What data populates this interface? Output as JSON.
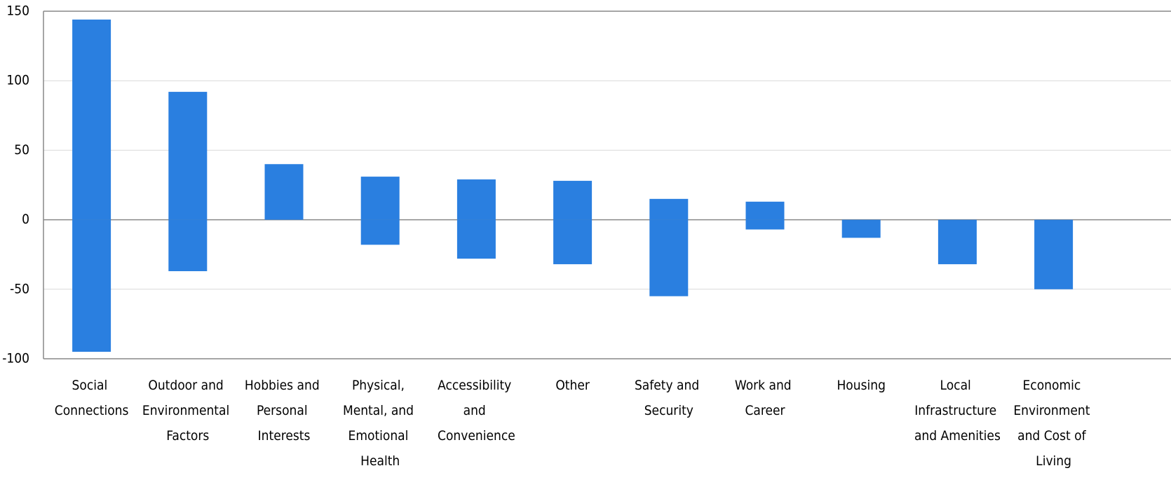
{
  "chart_data": {
    "type": "bar",
    "categories": [
      "Social Connections",
      "Outdoor and Environmental Factors",
      "Hobbies and Personal Interests",
      "Physical, Mental, and Emotional Health",
      "Accessibility and Convenience",
      "Other",
      "Safety and Security",
      "Work and Career",
      "Housing",
      "Local Infrastructure and Amenities",
      "Economic Environment and Cost of Living"
    ],
    "series": [
      {
        "color": "#2a7fe0",
        "values": [
          144,
          92,
          40,
          31,
          29,
          28,
          15,
          13,
          0,
          0,
          0
        ]
      },
      {
        "color": "#2a7fe0",
        "values": [
          -95,
          -37,
          0,
          -18,
          -28,
          -32,
          -55,
          -7,
          -13,
          -32,
          -50
        ]
      }
    ],
    "ylim": [
      -100,
      150
    ],
    "yticks": [
      -100,
      -50,
      0,
      50,
      100,
      150
    ],
    "grid": true
  }
}
